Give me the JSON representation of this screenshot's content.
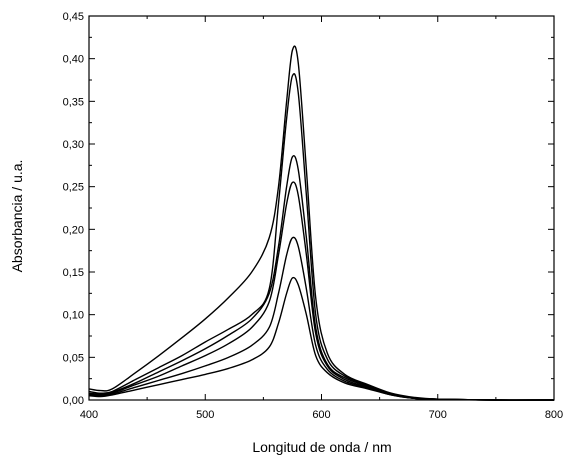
{
  "chart_data": {
    "type": "line",
    "title": "",
    "xlabel": "Longitud de onda / nm",
    "ylabel": "Absorbancia / u.a.",
    "xlim": [
      400,
      800
    ],
    "ylim": [
      0,
      0.45
    ],
    "x_ticks": [
      400,
      500,
      600,
      700,
      800
    ],
    "x_tick_labels": [
      "400",
      "500",
      "600",
      "700",
      "800"
    ],
    "y_ticks": [
      0,
      0.05,
      0.1,
      0.15,
      0.2,
      0.25,
      0.3,
      0.35,
      0.4,
      0.45
    ],
    "y_tick_labels": [
      "0,00",
      "0,05",
      "0,10",
      "0,15",
      "0,20",
      "0,25",
      "0,30",
      "0,35",
      "0,40",
      "0,45"
    ],
    "grid": false,
    "legend": "none",
    "line_color": "#000000",
    "x": [
      400,
      410,
      420,
      440,
      460,
      480,
      500,
      520,
      540,
      555,
      563,
      570,
      575,
      580,
      587,
      595,
      605,
      620,
      640,
      660,
      680,
      700,
      750,
      800
    ],
    "series": [
      {
        "values": [
          0.013,
          0.011,
          0.013,
          0.032,
          0.052,
          0.073,
          0.095,
          0.12,
          0.15,
          0.19,
          0.25,
          0.35,
          0.41,
          0.395,
          0.27,
          0.12,
          0.055,
          0.03,
          0.018,
          0.008,
          0.003,
          0.001,
          0,
          0
        ]
      },
      {
        "values": [
          0.01,
          0.008,
          0.01,
          0.024,
          0.038,
          0.052,
          0.068,
          0.083,
          0.1,
          0.13,
          0.23,
          0.33,
          0.38,
          0.36,
          0.24,
          0.1,
          0.048,
          0.028,
          0.017,
          0.007,
          0.002,
          0.001,
          0,
          0
        ]
      },
      {
        "values": [
          0.008,
          0.007,
          0.009,
          0.02,
          0.033,
          0.046,
          0.06,
          0.076,
          0.095,
          0.125,
          0.18,
          0.25,
          0.285,
          0.27,
          0.19,
          0.085,
          0.042,
          0.026,
          0.016,
          0.007,
          0.002,
          0.001,
          0,
          0
        ]
      },
      {
        "values": [
          0.007,
          0.006,
          0.008,
          0.018,
          0.028,
          0.04,
          0.052,
          0.066,
          0.085,
          0.115,
          0.17,
          0.23,
          0.255,
          0.24,
          0.17,
          0.078,
          0.04,
          0.024,
          0.015,
          0.007,
          0.002,
          0.001,
          0,
          0
        ]
      },
      {
        "values": [
          0.006,
          0.005,
          0.007,
          0.015,
          0.023,
          0.031,
          0.04,
          0.05,
          0.064,
          0.085,
          0.125,
          0.17,
          0.19,
          0.18,
          0.13,
          0.064,
          0.036,
          0.022,
          0.014,
          0.006,
          0.002,
          0.001,
          0,
          0
        ]
      },
      {
        "values": [
          0.005,
          0.004,
          0.006,
          0.012,
          0.018,
          0.024,
          0.03,
          0.037,
          0.047,
          0.062,
          0.09,
          0.125,
          0.143,
          0.135,
          0.1,
          0.052,
          0.032,
          0.02,
          0.013,
          0.006,
          0.002,
          0.001,
          0,
          0
        ]
      }
    ]
  }
}
